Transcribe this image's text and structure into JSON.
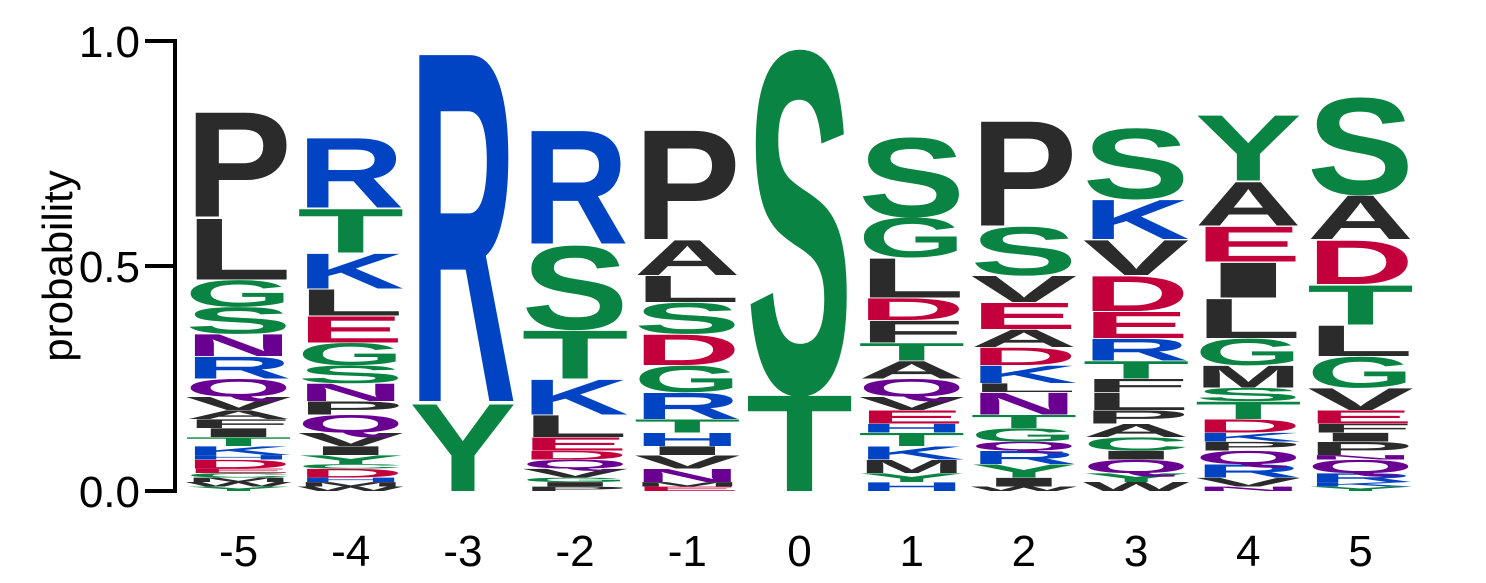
{
  "chart_data": {
    "type": "sequence_logo",
    "ylabel": "probability",
    "ylim": [
      0,
      1
    ],
    "yticks": [
      "0.0",
      "0.5",
      "1.0"
    ],
    "colors": {
      "hydrophobic": "#2b2b2b",
      "polar": "#0a8442",
      "basic": "#0044c4",
      "acidic": "#c4003c",
      "amide": "#6a0092"
    },
    "residue_color_group": {
      "A": "hydrophobic",
      "V": "hydrophobic",
      "L": "hydrophobic",
      "I": "hydrophobic",
      "P": "hydrophobic",
      "F": "hydrophobic",
      "W": "hydrophobic",
      "M": "hydrophobic",
      "S": "polar",
      "T": "polar",
      "G": "polar",
      "Y": "polar",
      "C": "polar",
      "K": "basic",
      "R": "basic",
      "H": "basic",
      "D": "acidic",
      "E": "acidic",
      "N": "amide",
      "Q": "amide"
    },
    "positions": [
      {
        "label": "-5",
        "stack": [
          [
            "Y",
            0.01
          ],
          [
            "W",
            0.01
          ],
          [
            "M",
            0.01
          ],
          [
            "C",
            0.01
          ],
          [
            "E",
            0.01
          ],
          [
            "D",
            0.02
          ],
          [
            "H",
            0.01
          ],
          [
            "K",
            0.02
          ],
          [
            "T",
            0.02
          ],
          [
            "I",
            0.02
          ],
          [
            "F",
            0.02
          ],
          [
            "A",
            0.02
          ],
          [
            "V",
            0.03
          ],
          [
            "Q",
            0.04
          ],
          [
            "R",
            0.05
          ],
          [
            "N",
            0.05
          ],
          [
            "S",
            0.06
          ],
          [
            "G",
            0.06
          ],
          [
            "L",
            0.14
          ],
          [
            "P",
            0.24
          ]
        ]
      },
      {
        "label": "-4",
        "stack": [
          [
            "W",
            0.01
          ],
          [
            "M",
            0.01
          ],
          [
            "H",
            0.01
          ],
          [
            "D",
            0.02
          ],
          [
            "C",
            0.01
          ],
          [
            "Y",
            0.02
          ],
          [
            "I",
            0.02
          ],
          [
            "V",
            0.03
          ],
          [
            "Q",
            0.04
          ],
          [
            "P",
            0.03
          ],
          [
            "N",
            0.04
          ],
          [
            "S",
            0.04
          ],
          [
            "G",
            0.05
          ],
          [
            "E",
            0.06
          ],
          [
            "L",
            0.06
          ],
          [
            "K",
            0.08
          ],
          [
            "T",
            0.1
          ],
          [
            "R",
            0.16
          ]
        ]
      },
      {
        "label": "-3",
        "stack": [
          [
            "Y",
            0.2
          ],
          [
            "R",
            0.8
          ]
        ]
      },
      {
        "label": "-2",
        "stack": [
          [
            "P",
            0.01
          ],
          [
            "I",
            0.01
          ],
          [
            "G",
            0.01
          ],
          [
            "V",
            0.02
          ],
          [
            "Q",
            0.02
          ],
          [
            "D",
            0.02
          ],
          [
            "E",
            0.03
          ],
          [
            "L",
            0.05
          ],
          [
            "K",
            0.08
          ],
          [
            "T",
            0.11
          ],
          [
            "S",
            0.19
          ],
          [
            "R",
            0.26
          ]
        ]
      },
      {
        "label": "-1",
        "stack": [
          [
            "E",
            0.01
          ],
          [
            "M",
            0.01
          ],
          [
            "N",
            0.03
          ],
          [
            "V",
            0.03
          ],
          [
            "I",
            0.02
          ],
          [
            "H",
            0.03
          ],
          [
            "T",
            0.03
          ],
          [
            "R",
            0.06
          ],
          [
            "G",
            0.06
          ],
          [
            "D",
            0.07
          ],
          [
            "S",
            0.07
          ],
          [
            "L",
            0.06
          ],
          [
            "A",
            0.08
          ],
          [
            "P",
            0.25
          ]
        ]
      },
      {
        "label": "0",
        "stack": [
          [
            "T",
            0.22
          ],
          [
            "S",
            0.78
          ]
        ]
      },
      {
        "label": "1",
        "stack": [
          [
            "H",
            0.02
          ],
          [
            "Y",
            0.02
          ],
          [
            "M",
            0.03
          ],
          [
            "K",
            0.03
          ],
          [
            "T",
            0.03
          ],
          [
            "H",
            0.02
          ],
          [
            "E",
            0.03
          ],
          [
            "V",
            0.03
          ],
          [
            "Q",
            0.04
          ],
          [
            "A",
            0.04
          ],
          [
            "T",
            0.04
          ],
          [
            "F",
            0.05
          ],
          [
            "D",
            0.05
          ],
          [
            "L",
            0.09
          ],
          [
            "G",
            0.09
          ],
          [
            "S",
            0.18
          ]
        ]
      },
      {
        "label": "2",
        "stack": [
          [
            "W",
            0.01
          ],
          [
            "I",
            0.02
          ],
          [
            "Y",
            0.03
          ],
          [
            "R",
            0.03
          ],
          [
            "Q",
            0.02
          ],
          [
            "G",
            0.03
          ],
          [
            "T",
            0.03
          ],
          [
            "N",
            0.05
          ],
          [
            "L",
            0.02
          ],
          [
            "K",
            0.04
          ],
          [
            "D",
            0.04
          ],
          [
            "A",
            0.04
          ],
          [
            "E",
            0.06
          ],
          [
            "V",
            0.06
          ],
          [
            "S",
            0.11
          ],
          [
            "P",
            0.24
          ]
        ]
      },
      {
        "label": "3",
        "stack": [
          [
            "W",
            0.02
          ],
          [
            "Y",
            0.02
          ],
          [
            "Q",
            0.03
          ],
          [
            "I",
            0.02
          ],
          [
            "C",
            0.03
          ],
          [
            "A",
            0.03
          ],
          [
            "P",
            0.03
          ],
          [
            "L",
            0.04
          ],
          [
            "F",
            0.03
          ],
          [
            "T",
            0.04
          ],
          [
            "R",
            0.05
          ],
          [
            "E",
            0.06
          ],
          [
            "D",
            0.08
          ],
          [
            "V",
            0.08
          ],
          [
            "K",
            0.09
          ],
          [
            "S",
            0.16
          ]
        ]
      },
      {
        "label": "4",
        "stack": [
          [
            "N",
            0.01
          ],
          [
            "V",
            0.02
          ],
          [
            "R",
            0.03
          ],
          [
            "Q",
            0.03
          ],
          [
            "P",
            0.02
          ],
          [
            "K",
            0.02
          ],
          [
            "D",
            0.03
          ],
          [
            "T",
            0.04
          ],
          [
            "S",
            0.03
          ],
          [
            "M",
            0.05
          ],
          [
            "G",
            0.06
          ],
          [
            "L",
            0.09
          ],
          [
            "I",
            0.08
          ],
          [
            "E",
            0.08
          ],
          [
            "A",
            0.1
          ],
          [
            "Y",
            0.15
          ]
        ]
      },
      {
        "label": "5",
        "stack": [
          [
            "Y",
            0.01
          ],
          [
            "K",
            0.01
          ],
          [
            "R",
            0.02
          ],
          [
            "Q",
            0.03
          ],
          [
            "N",
            0.01
          ],
          [
            "P",
            0.03
          ],
          [
            "I",
            0.02
          ],
          [
            "F",
            0.02
          ],
          [
            "E",
            0.03
          ],
          [
            "V",
            0.05
          ],
          [
            "G",
            0.07
          ],
          [
            "L",
            0.07
          ],
          [
            "T",
            0.09
          ],
          [
            "D",
            0.1
          ],
          [
            "A",
            0.1
          ],
          [
            "S",
            0.22
          ]
        ]
      }
    ]
  }
}
